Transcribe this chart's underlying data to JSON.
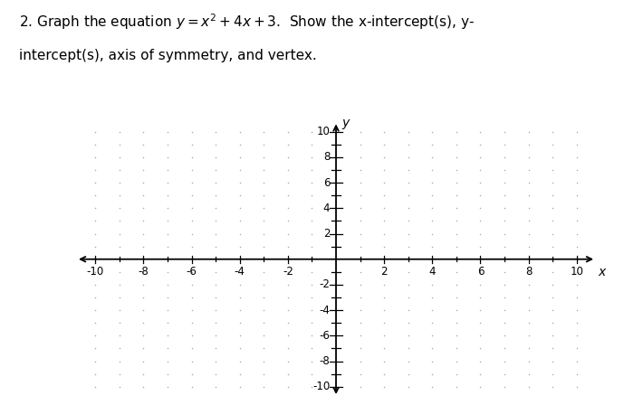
{
  "title_line1": "2. Graph the equation y = x² + 4x + 3.  Show the x-intercept(s), y-",
  "title_line2": "intercept(s), axis of symmetry, and vertex.",
  "xlim": [
    -10.8,
    10.8
  ],
  "ylim": [
    -10.8,
    10.8
  ],
  "x_ticks_even": [
    -10,
    -8,
    -6,
    -4,
    -2,
    2,
    4,
    6,
    8,
    10
  ],
  "y_ticks_even": [
    -10,
    -8,
    -6,
    -4,
    -2,
    2,
    4,
    6,
    8,
    10
  ],
  "dot_color": "#aaaaaa",
  "axis_color": "#000000",
  "background_color": "#ffffff",
  "tick_label_fontsize": 8.5,
  "axis_label_fontsize": 10
}
